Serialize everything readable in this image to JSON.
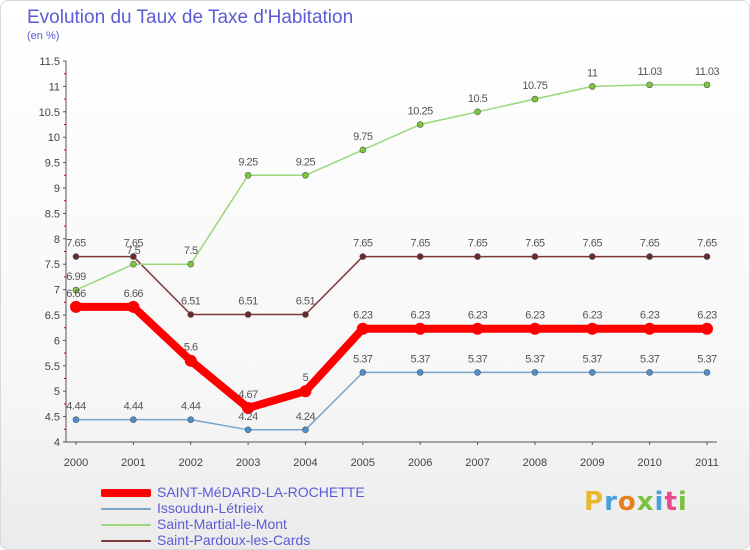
{
  "title": "Evolution du Taux de Taxe d'Habitation",
  "subtitle": "(en %)",
  "brand": {
    "letters": [
      "P",
      "r",
      "o",
      "x",
      "i",
      "t",
      "i"
    ],
    "colors": [
      "#e8b830",
      "#4aa0dc",
      "#e8801e",
      "#7cc23e",
      "#4aa0dc",
      "#e84a8a",
      "#7cc23e"
    ]
  },
  "chart_data": {
    "type": "line",
    "title": "Evolution du Taux de Taxe d'Habitation",
    "ylabel": "(en %)",
    "xlabel": "",
    "x": [
      "2000",
      "2001",
      "2002",
      "2003",
      "2004",
      "2005",
      "2006",
      "2007",
      "2008",
      "2009",
      "2010",
      "2011"
    ],
    "ylim": [
      4,
      11.5
    ],
    "yticks": [
      "4",
      "4.5",
      "5",
      "5.5",
      "6",
      "6.5",
      "7",
      "7.5",
      "8",
      "8.5",
      "9",
      "9.5",
      "10",
      "10.5",
      "11",
      "11.5"
    ],
    "grid": false,
    "legend_position": "bottom-left",
    "series": [
      {
        "name": "SAINT-MéDARD-LA-ROCHETTE",
        "color": "#ff0000",
        "marker": "#ff0000",
        "width": 8,
        "values": [
          6.66,
          6.66,
          5.6,
          4.67,
          5,
          6.23,
          6.23,
          6.23,
          6.23,
          6.23,
          6.23,
          6.23
        ],
        "labels": [
          "6.66",
          "6.66",
          "5.6",
          "4.67",
          "5",
          "6.23",
          "6.23",
          "6.23",
          "6.23",
          "6.23",
          "6.23",
          "6.23"
        ]
      },
      {
        "name": "Issoudun-Létrieix",
        "color": "#7aa5c8",
        "marker": "#4a90d0",
        "width": 1.5,
        "values": [
          4.44,
          4.44,
          4.44,
          4.24,
          4.24,
          5.37,
          5.37,
          5.37,
          5.37,
          5.37,
          5.37,
          5.37
        ],
        "labels": [
          "4.44",
          "4.44",
          "4.44",
          "4.24",
          "4.24",
          "5.37",
          "5.37",
          "5.37",
          "5.37",
          "5.37",
          "5.37",
          "5.37"
        ]
      },
      {
        "name": "Saint-Martial-le-Mont",
        "color": "#9ad87a",
        "marker": "#7cc83a",
        "width": 1.5,
        "values": [
          6.99,
          7.5,
          7.5,
          9.25,
          9.25,
          9.75,
          10.25,
          10.5,
          10.75,
          11,
          11.03,
          11.03
        ],
        "labels": [
          "6.99",
          "7.5",
          "7.5",
          "9.25",
          "9.25",
          "9.75",
          "10.25",
          "10.5",
          "10.75",
          "11",
          "11.03",
          "11.03"
        ]
      },
      {
        "name": "Saint-Pardoux-les-Cards",
        "color": "#7a3a3a",
        "marker": "#6a2a2a",
        "width": 1.5,
        "values": [
          7.65,
          7.65,
          6.51,
          6.51,
          6.51,
          7.65,
          7.65,
          7.65,
          7.65,
          7.65,
          7.65,
          7.65
        ],
        "labels": [
          "7.65",
          "7.65",
          "6.51",
          "6.51",
          "6.51",
          "7.65",
          "7.65",
          "7.65",
          "7.65",
          "7.65",
          "7.65",
          "7.65"
        ]
      }
    ]
  }
}
